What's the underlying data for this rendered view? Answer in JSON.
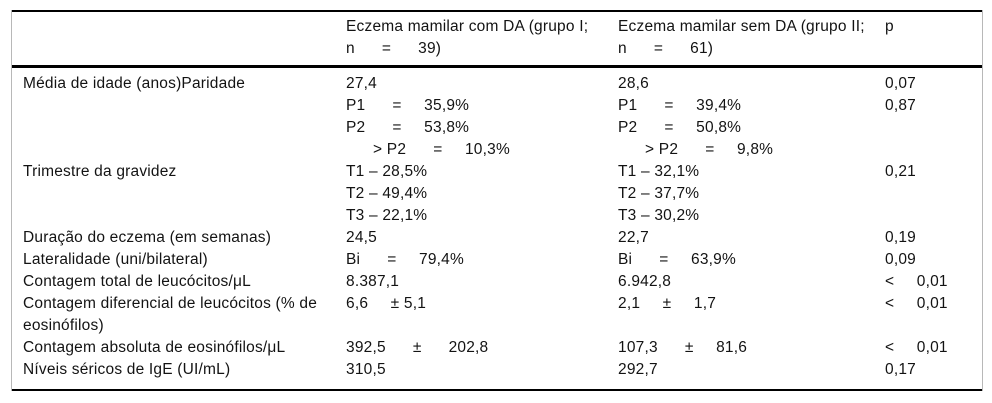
{
  "page": {
    "background_color": "#ffffff",
    "rule_color": "#000000",
    "side_rule_color": "#b8b8b8",
    "text_color": "#131313"
  },
  "table": {
    "header": {
      "col1": "",
      "group1": {
        "line1": "Eczema mamilar com DA (grupo I;",
        "line2": "n      =      39)"
      },
      "group2": {
        "line1": "Eczema mamilar sem DA (grupo II;",
        "line2": "n      =      61)"
      },
      "p_label": "p"
    },
    "rows": [
      {
        "label": "Média de idade (anos)Paridade",
        "group1": [
          "27,4",
          "P1      =     35,9%",
          "P2      =     53,8%",
          "      > P2      =     10,3%"
        ],
        "group2": [
          "28,6",
          "P1      =     39,4%",
          "P2      =     50,8%",
          "      > P2      =     9,8%"
        ],
        "p": [
          "0,07",
          "0,87"
        ]
      },
      {
        "label": "Trimestre da gravidez",
        "group1": [
          "T1 – 28,5%",
          "T2 – 49,4%",
          "T3 – 22,1%"
        ],
        "group2": [
          "T1 – 32,1%",
          "T2 – 37,7%",
          "T3 – 30,2%"
        ],
        "p": [
          "0,21"
        ]
      },
      {
        "label": "Duração do eczema (em semanas)",
        "group1": [
          "24,5"
        ],
        "group2": [
          "22,7"
        ],
        "p": [
          "0,19"
        ]
      },
      {
        "label": "Lateralidade (uni/bilateral)",
        "group1": [
          "Bi      =     79,4%"
        ],
        "group2": [
          "Bi      =     63,9%"
        ],
        "p": [
          "0,09"
        ]
      },
      {
        "label": "Contagem total de leucócitos/μL",
        "group1": [
          "8.387,1"
        ],
        "group2": [
          "6.942,8"
        ],
        "p": [
          "<     0,01"
        ]
      },
      {
        "label": "Contagem diferencial de leucócitos (% de eosinófilos)",
        "group1": [
          "6,6     ± 5,1"
        ],
        "group2": [
          "2,1     ±     1,7"
        ],
        "p": [
          "<     0,01"
        ]
      },
      {
        "label": "Contagem absoluta de eosinófilos/μL",
        "group1": [
          "392,5      ±      202,8"
        ],
        "group2": [
          "107,3      ±     81,6"
        ],
        "p": [
          "<     0,01"
        ]
      },
      {
        "label": "Níveis séricos de IgE (UI/mL)",
        "group1": [
          "310,5"
        ],
        "group2": [
          "292,7"
        ],
        "p": [
          "0,17"
        ]
      }
    ]
  }
}
